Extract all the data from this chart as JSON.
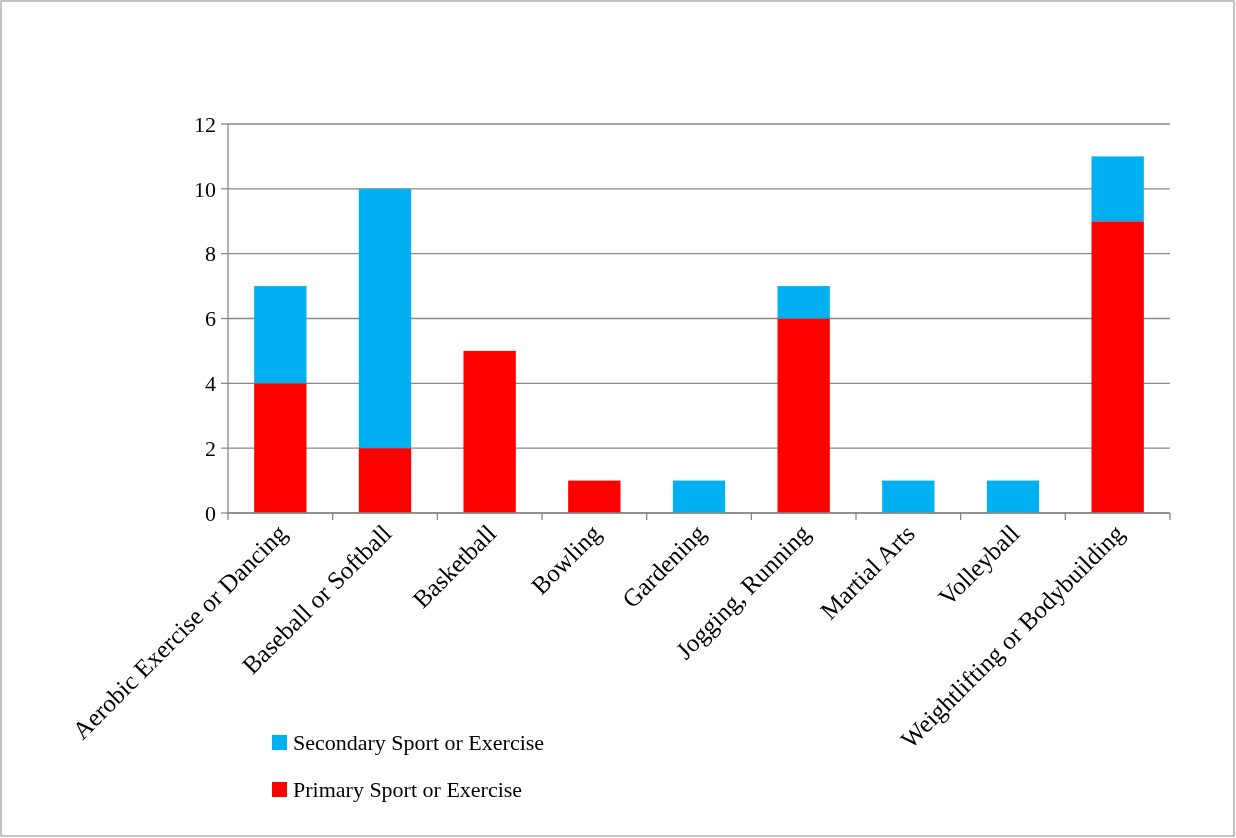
{
  "chart_data": {
    "type": "bar",
    "stacked": true,
    "categories": [
      "Aerobic Exercise or Dancing",
      "Baseball or Softball",
      "Basketball",
      "Bowling",
      "Gardening",
      "Jogging, Running",
      "Martial Arts",
      "Volleyball",
      "Weightlifting or Bodybuilding"
    ],
    "series": [
      {
        "name": "Primary Sport or Exercise",
        "color": "#ff0000",
        "values": [
          4,
          2,
          5,
          1,
          null,
          6,
          null,
          null,
          9
        ]
      },
      {
        "name": "Secondary Sport or Exercise",
        "color": "#00b0f0",
        "values": [
          3,
          8,
          null,
          null,
          1,
          1,
          1,
          1,
          2
        ]
      }
    ],
    "ylim": [
      0,
      12
    ],
    "yticks": [
      0,
      2,
      4,
      6,
      8,
      10,
      12
    ],
    "grid": "y",
    "legend": "bottom"
  }
}
